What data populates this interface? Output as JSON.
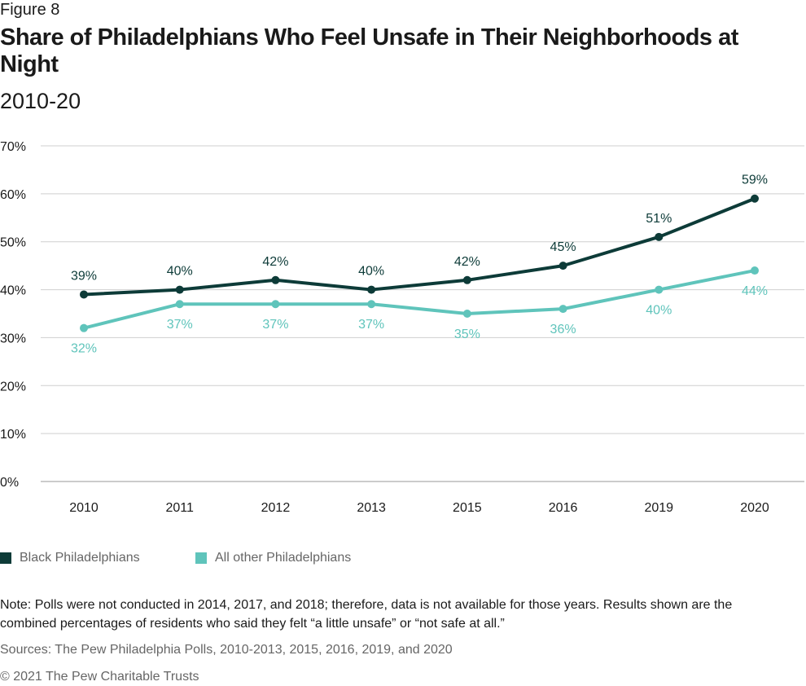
{
  "figure_label": "Figure 8",
  "title": "Share of Philadelphians Who Feel Unsafe in Their Neighborhoods at Night",
  "subtitle": "2010-20",
  "colors": {
    "black": "#0d3b38",
    "other": "#5fc4bb",
    "grid": "#cfcfcf",
    "axis_text": "#1a1a1a"
  },
  "chart_data": {
    "type": "line",
    "categories": [
      "2010",
      "2011",
      "2012",
      "2013",
      "2015",
      "2016",
      "2019",
      "2020"
    ],
    "ylim": [
      0,
      70
    ],
    "yticks": [
      0,
      10,
      20,
      30,
      40,
      50,
      60,
      70
    ],
    "ytick_labels": [
      "0%",
      "10%",
      "20%",
      "30%",
      "40%",
      "50%",
      "60%",
      "70%"
    ],
    "grid": true,
    "legend_position": "bottom-left",
    "series": [
      {
        "name": "Black Philadelphians",
        "values": [
          39,
          40,
          42,
          40,
          42,
          45,
          51,
          59
        ],
        "labels": [
          "39%",
          "40%",
          "42%",
          "40%",
          "42%",
          "45%",
          "51%",
          "59%"
        ]
      },
      {
        "name": "All other Philadelphians",
        "values": [
          32,
          37,
          37,
          37,
          35,
          36,
          40,
          44
        ],
        "labels": [
          "32%",
          "37%",
          "37%",
          "37%",
          "35%",
          "36%",
          "40%",
          "44%"
        ]
      }
    ]
  },
  "legend": {
    "black_label": "Black Philadelphians",
    "other_label": "All other Philadelphians"
  },
  "note": "Note: Polls were not conducted in 2014, 2017, and 2018; therefore, data is not available for those years. Results shown are the combined percentages of residents who said they felt “a little unsafe” or “not safe at all.”",
  "sources": "Sources: The Pew Philadelphia Polls, 2010-2013, 2015, 2016, 2019, and 2020",
  "copyright": "© 2021 The Pew Charitable Trusts"
}
